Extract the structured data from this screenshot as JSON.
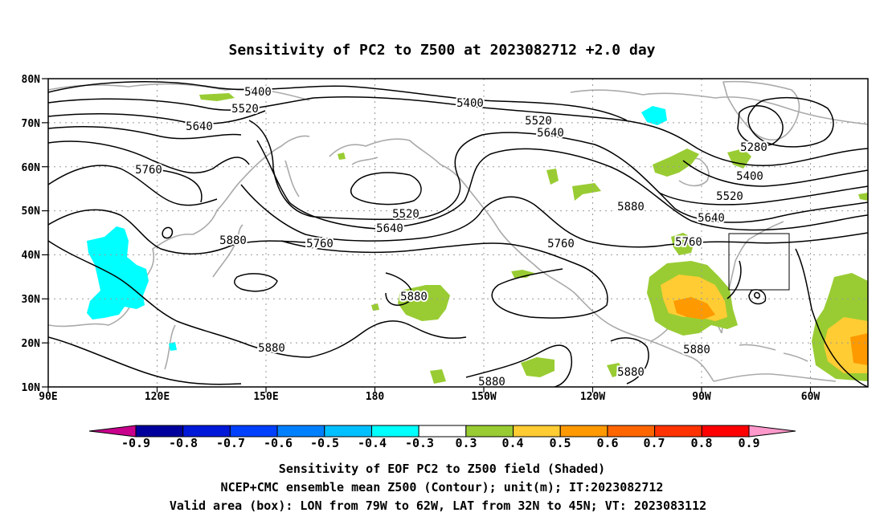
{
  "title": "Sensitivity of PC2 to Z500 at 2023082712 +2.0 day",
  "map": {
    "lat_labels": [
      "80N",
      "70N",
      "60N",
      "50N",
      "40N",
      "30N",
      "20N",
      "10N"
    ],
    "lon_labels": [
      "90E",
      "120E",
      "150E",
      "180",
      "150W",
      "120W",
      "90W",
      "60W"
    ],
    "contour_labels": [
      "5400",
      "5400",
      "5520",
      "5520",
      "5520",
      "5640",
      "5640",
      "5640",
      "5760",
      "5760",
      "5760",
      "5880",
      "5880",
      "5880",
      "5880",
      "5880",
      "5880",
      "5280",
      "5400",
      "5520",
      "5640",
      "5760",
      "5880"
    ],
    "box": {
      "lon": [
        "79W",
        "62W"
      ],
      "lat": [
        "32N",
        "45N"
      ]
    }
  },
  "colorbar": {
    "labels": [
      "-0.9",
      "-0.8",
      "-0.7",
      "-0.6",
      "-0.5",
      "-0.4",
      "-0.3",
      "0.3",
      "0.4",
      "0.5",
      "0.6",
      "0.7",
      "0.8",
      "0.9"
    ],
    "colors": [
      "#C8008C",
      "#00009C",
      "#0018D8",
      "#0040FF",
      "#0080FF",
      "#00C0FF",
      "#00FFFF",
      "#FFFFFF",
      "#99CC33",
      "#FFCC33",
      "#FF9900",
      "#FF6600",
      "#FF3300",
      "#FF0000",
      "#FF99CC"
    ]
  },
  "captions": {
    "line1": "Sensitivity of EOF PC2 to Z500 field (Shaded)",
    "line2": "NCEP+CMC ensemble mean Z500 (Contour); unit(m); IT:2023082712",
    "line3": "Valid area (box): LON from 79W to 62W, LAT from 32N to 45N; VT: 2023083112"
  }
}
